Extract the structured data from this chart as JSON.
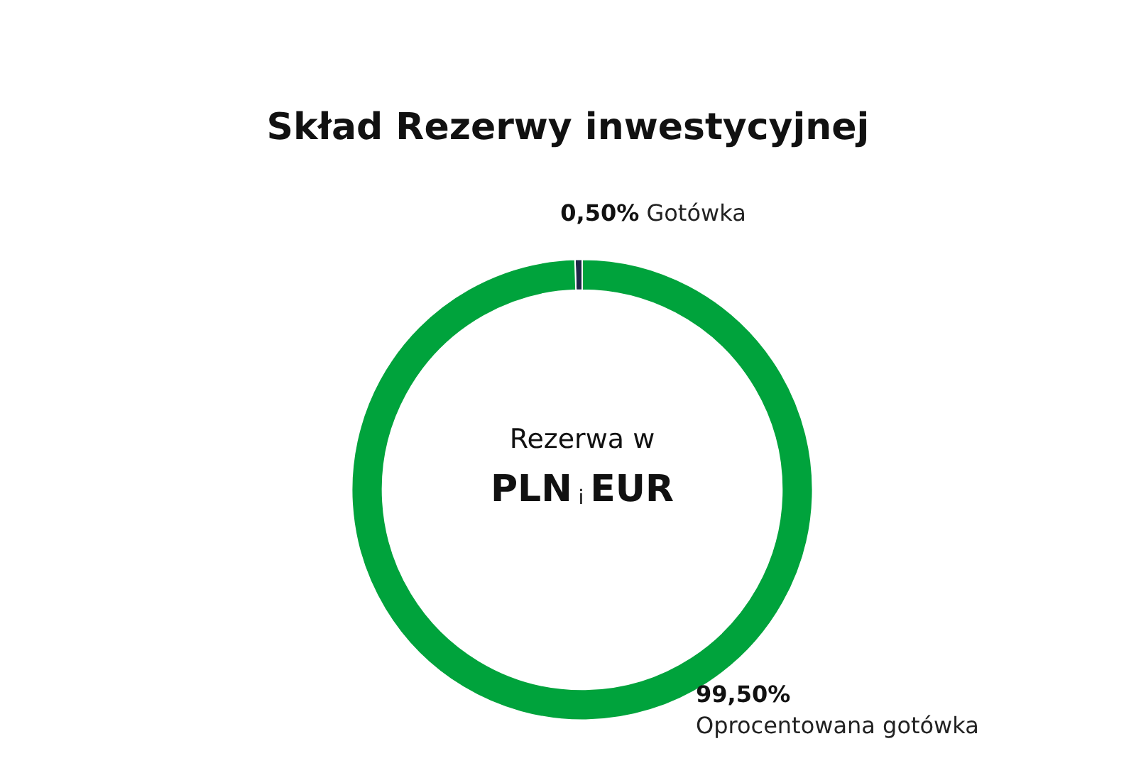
{
  "chart_data": {
    "type": "donut",
    "title": "Skład Rezerwy inwestycyjnej",
    "categories": [
      "Gotówka",
      "Oprocentowana gotówka"
    ],
    "values": [
      0.5,
      99.5
    ],
    "colors": [
      "#1f2747",
      "#00a33c"
    ],
    "value_labels": [
      "0,50%",
      "99,50%"
    ],
    "annotations": [
      "Rezerwa w",
      "PLN i EUR"
    ]
  }
}
